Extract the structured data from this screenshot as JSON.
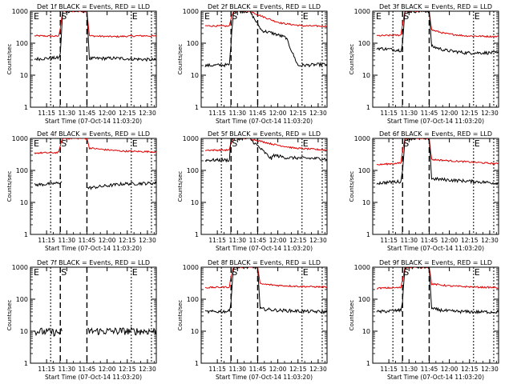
{
  "colors": {
    "events": "#000000",
    "lld": "#e00000",
    "frame": "#000000",
    "background": "#ffffff"
  },
  "chart_data": [
    {
      "type": "line",
      "title": "Det 1f BLACK = Events, RED = LLD",
      "xlabel": "Start Time (07-Oct-14 11:03:20)",
      "ylabel": "Counts/sec",
      "x_ticks": [
        "11:15",
        "11:30",
        "11:45",
        "12:00",
        "12:15",
        "12:30"
      ],
      "y_ticks": [
        "1",
        "10",
        "100",
        "1000"
      ],
      "y_scale": "log",
      "ylim": [
        1,
        1000
      ],
      "annotations": [
        "E",
        "S",
        "E"
      ],
      "series": [
        {
          "name": "LLD",
          "points": [
            [
              11.1,
              170
            ],
            [
              11.4,
              165
            ],
            [
              11.42,
              300
            ],
            [
              11.45,
              1000
            ],
            [
              11.75,
              1000
            ],
            [
              11.78,
              170
            ],
            [
              11.9,
              165
            ],
            [
              12.1,
              160
            ],
            [
              12.4,
              170
            ],
            [
              12.5,
              170
            ],
            [
              12.61,
              165
            ]
          ]
        },
        {
          "name": "Events",
          "points": [
            [
              11.1,
              32
            ],
            [
              11.4,
              35
            ],
            [
              11.42,
              45
            ],
            [
              11.45,
              1000
            ],
            [
              11.75,
              1000
            ],
            [
              11.78,
              33
            ],
            [
              12.1,
              34
            ],
            [
              12.61,
              30
            ]
          ]
        }
      ]
    },
    {
      "type": "line",
      "title": "Det 2f BLACK = Events, RED = LLD",
      "xlabel": "Start Time (07-Oct-14 11:03:20)",
      "ylabel": "Counts/sec",
      "x_ticks": [
        "11:15",
        "11:30",
        "11:45",
        "12:00",
        "12:15",
        "12:30"
      ],
      "y_ticks": [
        "1",
        "10",
        "100",
        "1000"
      ],
      "y_scale": "log",
      "ylim": [
        1,
        1000
      ],
      "annotations": [
        "E",
        "S",
        "E"
      ],
      "series": [
        {
          "name": "LLD",
          "points": [
            [
              11.1,
              350
            ],
            [
              11.4,
              340
            ],
            [
              11.42,
              600
            ],
            [
              11.45,
              1000
            ],
            [
              11.65,
              1000
            ],
            [
              11.8,
              700
            ],
            [
              11.95,
              500
            ],
            [
              12.05,
              420
            ],
            [
              12.3,
              350
            ],
            [
              12.61,
              340
            ]
          ]
        },
        {
          "name": "Events",
          "points": [
            [
              11.1,
              20
            ],
            [
              11.4,
              21
            ],
            [
              11.42,
              100
            ],
            [
              11.45,
              1000
            ],
            [
              11.65,
              1000
            ],
            [
              11.8,
              250
            ],
            [
              11.95,
              200
            ],
            [
              12.1,
              150
            ],
            [
              12.25,
              20
            ],
            [
              12.61,
              22
            ]
          ]
        }
      ]
    },
    {
      "type": "line",
      "title": "Det 3f BLACK = Events, RED = LLD",
      "xlabel": "Start Time (07-Oct-14 11:03:20)",
      "ylabel": "Counts/sec",
      "x_ticks": [
        "11:15",
        "11:30",
        "11:45",
        "12:00",
        "12:15",
        "12:30"
      ],
      "y_ticks": [
        "1",
        "10",
        "100",
        "1000"
      ],
      "y_scale": "log",
      "ylim": [
        1,
        1000
      ],
      "annotations": [
        "E",
        "S",
        "E"
      ],
      "series": [
        {
          "name": "LLD",
          "points": [
            [
              11.1,
              170
            ],
            [
              11.4,
              180
            ],
            [
              11.42,
              400
            ],
            [
              11.45,
              1000
            ],
            [
              11.75,
              1000
            ],
            [
              11.78,
              260
            ],
            [
              11.95,
              200
            ],
            [
              12.2,
              170
            ],
            [
              12.61,
              160
            ]
          ]
        },
        {
          "name": "Events",
          "points": [
            [
              11.1,
              70
            ],
            [
              11.4,
              60
            ],
            [
              11.42,
              100
            ],
            [
              11.45,
              1000
            ],
            [
              11.75,
              1000
            ],
            [
              11.78,
              80
            ],
            [
              11.95,
              60
            ],
            [
              12.2,
              50
            ],
            [
              12.61,
              50
            ]
          ]
        }
      ]
    },
    {
      "type": "line",
      "title": "Det 4f BLACK = Events, RED = LLD",
      "xlabel": "Start Time (07-Oct-14 11:03:20)",
      "ylabel": "Counts/sec",
      "x_ticks": [
        "11:15",
        "11:30",
        "11:45",
        "12:00",
        "12:15",
        "12:30"
      ],
      "y_ticks": [
        "1",
        "10",
        "100",
        "1000"
      ],
      "y_scale": "log",
      "ylim": [
        1,
        1000
      ],
      "annotations": [
        "E",
        "S",
        "E"
      ],
      "series": [
        {
          "name": "LLD",
          "points": [
            [
              11.1,
              350
            ],
            [
              11.4,
              360
            ],
            [
              11.42,
              600
            ],
            [
              11.45,
              1000
            ],
            [
              11.75,
              1000
            ],
            [
              11.78,
              500
            ],
            [
              11.95,
              450
            ],
            [
              12.2,
              400
            ],
            [
              12.61,
              380
            ]
          ]
        },
        {
          "name": "Events",
          "points": [
            [
              11.1,
              35
            ],
            [
              11.4,
              40
            ],
            [
              11.44,
              45
            ]
          ]
        },
        {
          "name": "Events",
          "points": [
            [
              11.76,
              28
            ],
            [
              11.95,
              32
            ],
            [
              12.2,
              38
            ],
            [
              12.61,
              40
            ]
          ]
        }
      ]
    },
    {
      "type": "line",
      "title": "Det 5f BLACK = Events, RED = LLD",
      "xlabel": "Start Time (07-Oct-14 11:03:20)",
      "ylabel": "Counts/sec",
      "x_ticks": [
        "11:15",
        "11:30",
        "11:45",
        "12:00",
        "12:15",
        "12:30"
      ],
      "y_ticks": [
        "1",
        "10",
        "100",
        "1000"
      ],
      "y_scale": "log",
      "ylim": [
        1,
        1000
      ],
      "annotations": [
        "S",
        "E"
      ],
      "series": [
        {
          "name": "LLD",
          "points": [
            [
              11.1,
              430
            ],
            [
              11.4,
              430
            ],
            [
              11.42,
              700
            ],
            [
              11.45,
              1000
            ],
            [
              11.65,
              1000
            ],
            [
              11.8,
              800
            ],
            [
              11.95,
              650
            ],
            [
              12.2,
              500
            ],
            [
              12.61,
              430
            ]
          ]
        },
        {
          "name": "Events",
          "points": [
            [
              11.1,
              210
            ],
            [
              11.4,
              210
            ],
            [
              11.42,
              1000
            ],
            [
              11.45,
              1000
            ],
            [
              11.65,
              1000
            ],
            [
              11.92,
              230
            ],
            [
              11.95,
              300
            ],
            [
              12.1,
              250
            ],
            [
              12.61,
              230
            ]
          ]
        }
      ]
    },
    {
      "type": "line",
      "title": "Det 6f BLACK = Events, RED = LLD",
      "xlabel": "Start Time (07-Oct-14 11:03:20)",
      "ylabel": "Counts/sec",
      "x_ticks": [
        "11:15",
        "11:30",
        "11:45",
        "12:00",
        "12:15",
        "12:30"
      ],
      "y_ticks": [
        "1",
        "10",
        "100",
        "1000"
      ],
      "y_scale": "log",
      "ylim": [
        1,
        1000
      ],
      "annotations": [
        "S",
        "E"
      ],
      "series": [
        {
          "name": "LLD",
          "points": [
            [
              11.1,
              150
            ],
            [
              11.4,
              170
            ],
            [
              11.42,
              400
            ],
            [
              11.45,
              1000
            ],
            [
              11.75,
              1000
            ],
            [
              11.78,
              220
            ],
            [
              12.0,
              200
            ],
            [
              12.3,
              180
            ],
            [
              12.61,
              160
            ]
          ]
        },
        {
          "name": "Events",
          "points": [
            [
              11.1,
              40
            ],
            [
              11.4,
              45
            ],
            [
              11.42,
              100
            ],
            [
              11.45,
              1000
            ],
            [
              11.75,
              1000
            ],
            [
              11.78,
              55
            ],
            [
              12.0,
              50
            ],
            [
              12.3,
              45
            ],
            [
              12.61,
              40
            ]
          ]
        }
      ]
    },
    {
      "type": "line",
      "title": "Det 7f BLACK = Events, RED = LLD",
      "xlabel": "Start Time (07-Oct-14 11:03:20)",
      "ylabel": "Counts/sec",
      "x_ticks": [
        "11:15",
        "11:30",
        "11:45",
        "12:00",
        "12:15",
        "12:30"
      ],
      "y_ticks": [
        "1",
        "10",
        "100",
        "1000"
      ],
      "y_scale": "log",
      "ylim": [
        1,
        1000
      ],
      "annotations": [
        "E",
        "S",
        "E"
      ],
      "series": [
        {
          "name": "Events",
          "points": [
            [
              11.1,
              10
            ],
            [
              11.4,
              9
            ],
            [
              11.44,
              10
            ]
          ]
        },
        {
          "name": "Events",
          "points": [
            [
              11.76,
              10
            ],
            [
              12.0,
              10
            ],
            [
              12.3,
              10
            ],
            [
              12.61,
              10
            ]
          ]
        }
      ]
    },
    {
      "type": "line",
      "title": "Det 8f BLACK = Events, RED = LLD",
      "xlabel": "Start Time (07-Oct-14 11:03:20)",
      "ylabel": "Counts/sec",
      "x_ticks": [
        "11:15",
        "11:30",
        "11:45",
        "12:00",
        "12:15",
        "12:30"
      ],
      "y_ticks": [
        "1",
        "10",
        "100",
        "1000"
      ],
      "y_scale": "log",
      "ylim": [
        1,
        1000
      ],
      "annotations": [
        "S",
        "E"
      ],
      "series": [
        {
          "name": "LLD",
          "points": [
            [
              11.1,
              230
            ],
            [
              11.4,
              240
            ],
            [
              11.42,
              500
            ],
            [
              11.45,
              1000
            ],
            [
              11.75,
              1000
            ],
            [
              11.78,
              300
            ],
            [
              12.0,
              270
            ],
            [
              12.3,
              250
            ],
            [
              12.61,
              240
            ]
          ]
        },
        {
          "name": "Events",
          "points": [
            [
              11.1,
              40
            ],
            [
              11.4,
              42
            ],
            [
              11.42,
              90
            ],
            [
              11.45,
              1000
            ],
            [
              11.75,
              1000
            ],
            [
              11.78,
              50
            ],
            [
              12.0,
              45
            ],
            [
              12.3,
              42
            ],
            [
              12.61,
              40
            ]
          ]
        }
      ]
    },
    {
      "type": "line",
      "title": "Det 9f BLACK = Events, RED = LLD",
      "xlabel": "Start Time (07-Oct-14 11:03:20)",
      "ylabel": "Counts/sec",
      "x_ticks": [
        "11:15",
        "11:30",
        "11:45",
        "12:00",
        "12:15",
        "12:30"
      ],
      "y_ticks": [
        "1",
        "10",
        "100",
        "1000"
      ],
      "y_scale": "log",
      "ylim": [
        1,
        1000
      ],
      "annotations": [
        "S",
        "E"
      ],
      "series": [
        {
          "name": "LLD",
          "points": [
            [
              11.1,
              220
            ],
            [
              11.4,
              230
            ],
            [
              11.42,
              400
            ],
            [
              11.45,
              1000
            ],
            [
              11.75,
              1000
            ],
            [
              11.78,
              300
            ],
            [
              12.0,
              260
            ],
            [
              12.3,
              240
            ],
            [
              12.61,
              230
            ]
          ]
        },
        {
          "name": "Events",
          "points": [
            [
              11.1,
              40
            ],
            [
              11.4,
              45
            ],
            [
              11.42,
              90
            ],
            [
              11.45,
              1000
            ],
            [
              11.75,
              1000
            ],
            [
              11.78,
              50
            ],
            [
              12.0,
              42
            ],
            [
              12.3,
              40
            ],
            [
              12.61,
              40
            ]
          ]
        }
      ]
    }
  ]
}
